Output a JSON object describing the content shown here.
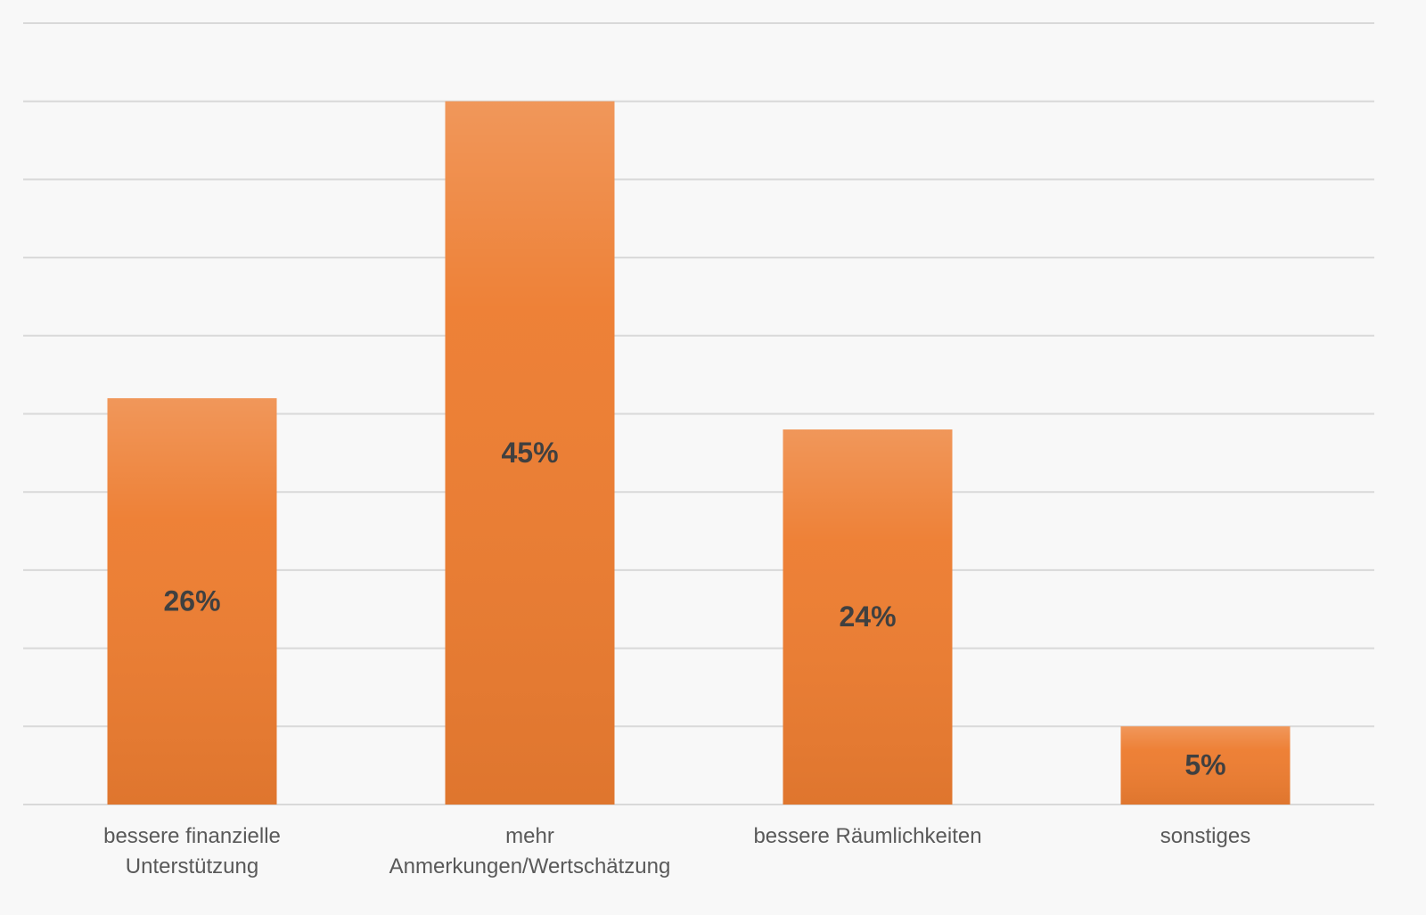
{
  "chart_data": {
    "type": "bar",
    "categories": [
      "bessere finanzielle\nUnterstützung",
      "mehr\nAnmerkungen/Wertschätzung",
      "bessere Räumlichkeiten",
      "sonstiges"
    ],
    "values": [
      26,
      45,
      24,
      5
    ],
    "value_labels": [
      "26%",
      "45%",
      "24%",
      "5%"
    ],
    "color": "#ed7d31",
    "ylim": [
      0,
      50
    ],
    "yticks": [
      0,
      5,
      10,
      15,
      20,
      25,
      30,
      35,
      40,
      45,
      50
    ],
    "grid": true
  }
}
